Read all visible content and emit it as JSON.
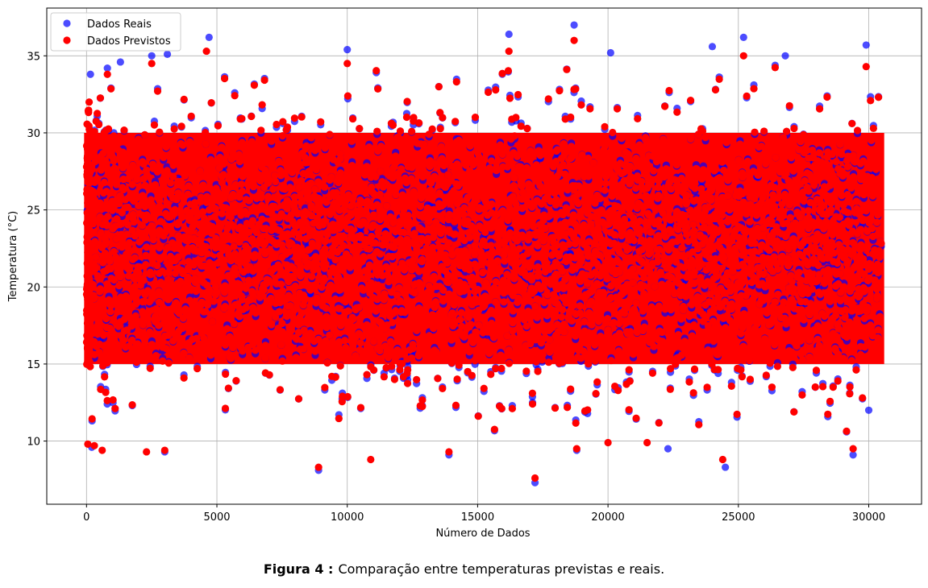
{
  "chart_data": {
    "type": "scatter",
    "title": "",
    "xlabel": "Número de Dados",
    "ylabel": "Temperatura (°C)",
    "xlim": [
      -1525,
      32025
    ],
    "ylim": [
      5.9,
      38.1
    ],
    "xticks": [
      0,
      5000,
      10000,
      15000,
      20000,
      25000,
      30000
    ],
    "xtick_labels": [
      "0",
      "5000",
      "10000",
      "15000",
      "20000",
      "25000",
      "30000"
    ],
    "yticks": [
      10,
      15,
      20,
      25,
      30,
      35
    ],
    "ytick_labels": [
      "10",
      "15",
      "20",
      "25",
      "30",
      "35"
    ],
    "grid": true,
    "legend_position": "top-left",
    "n_points": 30500,
    "dense_band": {
      "x_range": [
        0,
        30500
      ],
      "y_range": [
        15,
        30
      ]
    },
    "series": [
      {
        "name": "Dados Reais",
        "color": "#0000ff",
        "alpha": 0.7,
        "outliers": [
          [
            150,
            33.8
          ],
          [
            800,
            34.2
          ],
          [
            1300,
            34.6
          ],
          [
            2500,
            35.0
          ],
          [
            3100,
            35.1
          ],
          [
            4700,
            36.2
          ],
          [
            10000,
            35.4
          ],
          [
            16200,
            36.4
          ],
          [
            18700,
            37.0
          ],
          [
            20100,
            35.2
          ],
          [
            24000,
            35.6
          ],
          [
            25200,
            36.2
          ],
          [
            26800,
            35.0
          ],
          [
            29900,
            35.7
          ],
          [
            200,
            9.6
          ],
          [
            3000,
            9.3
          ],
          [
            8900,
            8.1
          ],
          [
            13900,
            9.1
          ],
          [
            17200,
            7.3
          ],
          [
            18800,
            9.4
          ],
          [
            22300,
            9.5
          ],
          [
            24500,
            8.3
          ],
          [
            29400,
            9.1
          ],
          [
            30000,
            12.0
          ]
        ]
      },
      {
        "name": "Dados Previstos",
        "color": "#ff0000",
        "alpha": 1.0,
        "outliers": [
          [
            100,
            32.0
          ],
          [
            800,
            33.8
          ],
          [
            2500,
            34.5
          ],
          [
            4600,
            35.3
          ],
          [
            10000,
            34.5
          ],
          [
            16200,
            35.3
          ],
          [
            18700,
            36.0
          ],
          [
            25200,
            35.0
          ],
          [
            29900,
            34.3
          ],
          [
            50,
            9.8
          ],
          [
            300,
            9.7
          ],
          [
            600,
            9.4
          ],
          [
            2300,
            9.3
          ],
          [
            3000,
            9.4
          ],
          [
            8900,
            8.3
          ],
          [
            10900,
            8.8
          ],
          [
            13900,
            9.3
          ],
          [
            17200,
            7.6
          ],
          [
            18800,
            9.5
          ],
          [
            20000,
            9.9
          ],
          [
            21500,
            9.9
          ],
          [
            24400,
            8.8
          ],
          [
            29400,
            9.5
          ]
        ]
      }
    ]
  },
  "caption": {
    "label": "Figura 4 :",
    "text": "Comparação entre temperaturas previstas e reais."
  }
}
